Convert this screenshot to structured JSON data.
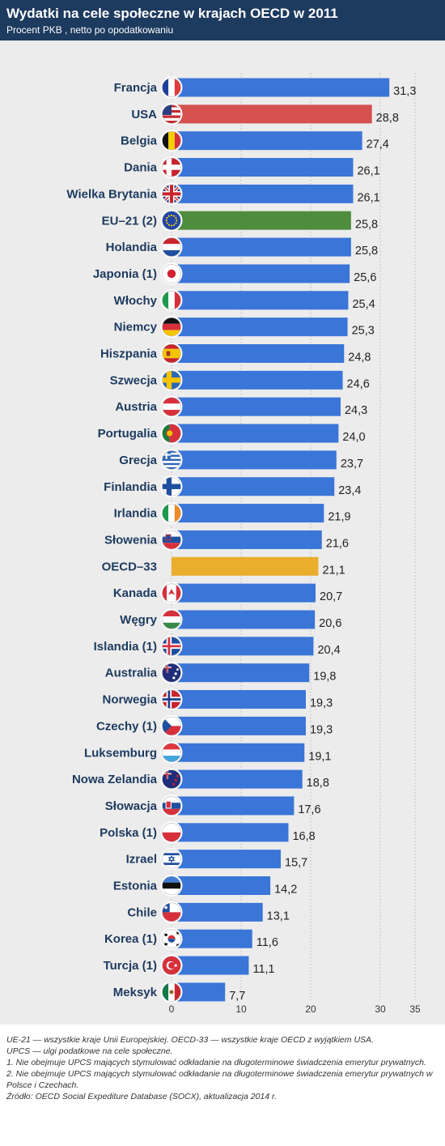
{
  "title": "Wydatki na cele społeczne w krajach OECD w 2011",
  "subtitle": "Procent PKB , netto po opodatkowaniu",
  "colors": {
    "default_bar": "#3a75d8",
    "highlight_usa": "#d5504f",
    "highlight_eu": "#4f8d3e",
    "highlight_oecd": "#eaae2c",
    "header_bg": "#1d3a5f"
  },
  "chart_data": {
    "type": "bar",
    "orientation": "horizontal",
    "xlim": [
      0,
      35
    ],
    "xticks": [
      "0",
      "10",
      "20",
      "30",
      "35"
    ],
    "grid": true,
    "categories": [
      "Francja",
      "USA",
      "Belgia",
      "Dania",
      "Wielka Brytania",
      "EU–21 (2)",
      "Holandia",
      "Japonia (1)",
      "Włochy",
      "Niemcy",
      "Hiszpania",
      "Szwecja",
      "Austria",
      "Portugalia",
      "Grecja",
      "Finlandia",
      "Irlandia",
      "Słowenia",
      "OECD–33",
      "Kanada",
      "Węgry",
      "Islandia (1)",
      "Australia",
      "Norwegia",
      "Czechy (1)",
      "Luksemburg",
      "Nowa Zelandia",
      "Słowacja",
      "Polska (1)",
      "Izrael",
      "Estonia",
      "Chile",
      "Korea (1)",
      "Turcja (1)",
      "Meksyk"
    ],
    "values": [
      31.3,
      28.8,
      27.4,
      26.1,
      26.1,
      25.8,
      25.8,
      25.6,
      25.4,
      25.3,
      24.8,
      24.6,
      24.3,
      24.0,
      23.7,
      23.4,
      21.9,
      21.6,
      21.1,
      20.7,
      20.6,
      20.4,
      19.8,
      19.3,
      19.3,
      19.1,
      18.8,
      17.6,
      16.8,
      15.7,
      14.2,
      13.1,
      11.6,
      11.1,
      7.7
    ],
    "value_labels": [
      "31,3",
      "28,8",
      "27,4",
      "26,1",
      "26,1",
      "25,8",
      "25,8",
      "25,6",
      "25,4",
      "25,3",
      "24,8",
      "24,6",
      "24,3",
      "24,0",
      "23,7",
      "23,4",
      "21,9",
      "21,6",
      "21,1",
      "20,7",
      "20,6",
      "20,4",
      "19,8",
      "19,3",
      "19,3",
      "19,1",
      "18,8",
      "17,6",
      "16,8",
      "15,7",
      "14,2",
      "13,1",
      "11,6",
      "11,1",
      "7,7"
    ],
    "flags": [
      "france",
      "usa",
      "belgium",
      "denmark",
      "uk",
      "eu",
      "netherlands",
      "japan",
      "italy",
      "germany",
      "spain",
      "sweden",
      "austria",
      "portugal",
      "greece",
      "finland",
      "ireland",
      "slovenia",
      "",
      "canada",
      "hungary",
      "iceland",
      "australia",
      "norway",
      "czechia",
      "luxembourg",
      "new-zealand",
      "slovakia",
      "poland",
      "israel",
      "estonia",
      "chile",
      "korea",
      "turkey",
      "mexico"
    ],
    "highlight": {
      "USA": "#d5504f",
      "EU–21 (2)": "#4f8d3e",
      "OECD–33": "#eaae2c"
    }
  },
  "notes": [
    "UE-21 — wszystkie kraje Unii Europejskiej. OECD-33 — wszystkie kraje OECD z wyjątkiem USA.",
    "UPCS — ulgi podatkowe na cele społeczne.",
    "1. Nie obejmuje UPCS mających stymulować odkładanie na długoterminowe świadczenia emerytur prywatnych.",
    "2. Nie obejmuje UPCS mających stymulować odkładanie na długoterminowe świadczenia emerytur prywatnych w Polsce i Czechach.",
    "Źródło: OECD Social Expediture Database (SOCX), aktualizacja 2014 r."
  ]
}
